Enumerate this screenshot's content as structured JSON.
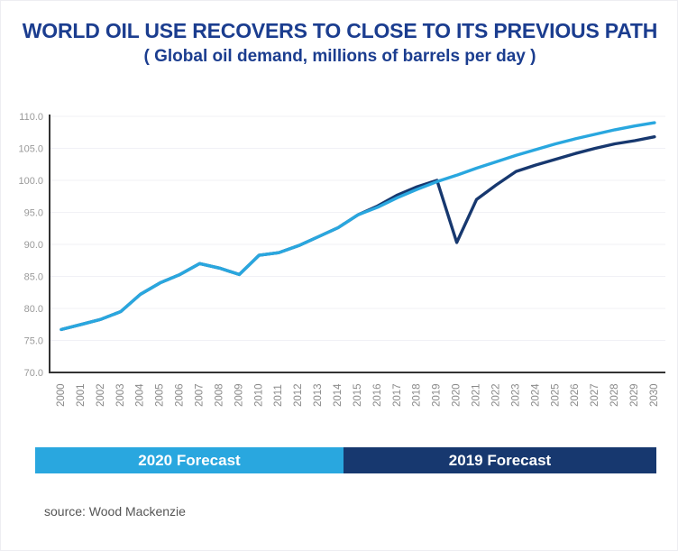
{
  "title": "WORLD OIL USE RECOVERS TO CLOSE TO ITS PREVIOUS PATH",
  "subtitle": "( Global oil demand, millions of barrels per day )",
  "source": "source: Wood Mackenzie",
  "colors": {
    "title_text": "#1B3D8F",
    "forecast_2020": "#29A7DF",
    "forecast_2019": "#17386F",
    "axis": "#333333",
    "grid": "#F1F1F6",
    "y_tick_text": "#9A9A9A",
    "x_tick_text": "#8A8A8A",
    "source_text": "#555555"
  },
  "legend": [
    {
      "label": "2020 Forecast",
      "color_key": "forecast_2020"
    },
    {
      "label": "2019 Forecast",
      "color_key": "forecast_2019"
    }
  ],
  "chart_data": {
    "type": "line",
    "title": "WORLD OIL USE RECOVERS TO CLOSE TO ITS PREVIOUS PATH",
    "subtitle": "( Global oil demand, millions of barrels per day )",
    "xlabel": "",
    "ylabel": "",
    "ylim": [
      70,
      110
    ],
    "y_ticks": [
      110,
      105,
      100,
      95,
      90,
      85,
      80,
      75,
      70
    ],
    "y_tick_decimals": 1,
    "x_tick_rotation_deg": -90,
    "grid": "horizontal-faint",
    "legend_position": "bottom-bars",
    "x": [
      2000,
      2001,
      2002,
      2003,
      2004,
      2005,
      2006,
      2007,
      2008,
      2009,
      2010,
      2011,
      2012,
      2013,
      2014,
      2015,
      2016,
      2017,
      2018,
      2019,
      2020,
      2021,
      2022,
      2023,
      2024,
      2025,
      2026,
      2027,
      2028,
      2029,
      2030
    ],
    "series": [
      {
        "name": "2020 Forecast",
        "color": "#29A7DF",
        "values": [
          76.7,
          77.5,
          78.3,
          79.5,
          82.2,
          84.0,
          85.3,
          87.0,
          86.3,
          85.3,
          88.3,
          88.7,
          89.8,
          91.2,
          92.6,
          94.6,
          95.8,
          97.3,
          98.6,
          99.8,
          100.8,
          101.9,
          102.9,
          103.9,
          104.8,
          105.7,
          106.5,
          107.2,
          107.9,
          108.5,
          109.0
        ]
      },
      {
        "name": "2019 Forecast",
        "color": "#17386F",
        "values": [
          76.7,
          77.5,
          78.3,
          79.5,
          82.2,
          84.0,
          85.3,
          87.0,
          86.3,
          85.3,
          88.3,
          88.7,
          89.8,
          91.2,
          92.6,
          94.6,
          96.0,
          97.7,
          99.0,
          100.0,
          90.3,
          97.0,
          99.3,
          101.4,
          102.4,
          103.3,
          104.2,
          105.0,
          105.7,
          106.2,
          106.8
        ]
      }
    ]
  }
}
